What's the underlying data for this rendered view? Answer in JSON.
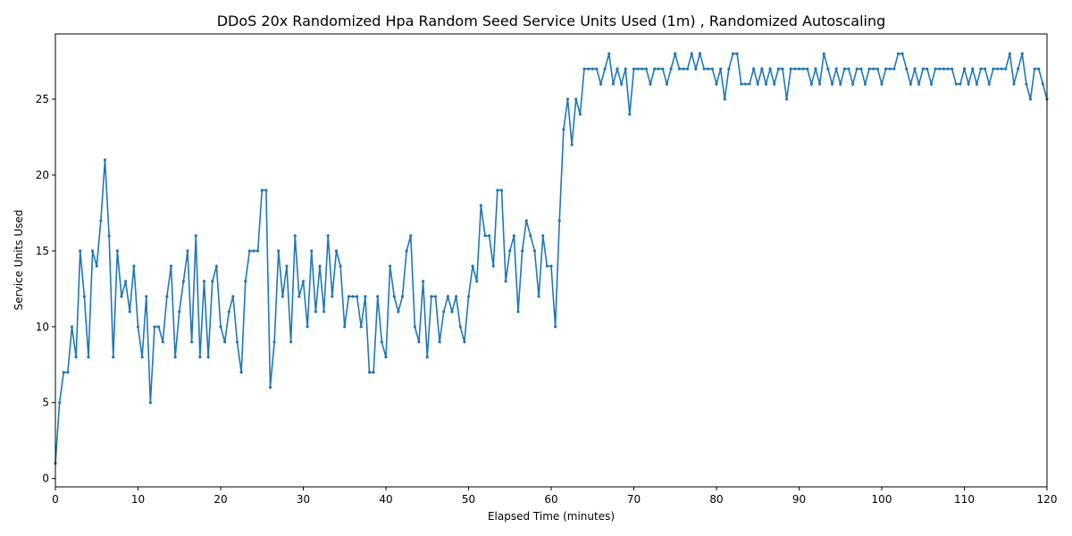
{
  "chart_data": {
    "type": "line",
    "title": "DDoS 20x Randomized Hpa Random Seed Service Units Used (1m) , Randomized Autoscaling",
    "xlabel": "Elapsed Time (minutes)",
    "ylabel": "Service Units Used",
    "xlim": [
      0,
      120
    ],
    "ylim": [
      -0.55,
      29.3
    ],
    "xticks": [
      0,
      10,
      20,
      30,
      40,
      50,
      60,
      70,
      80,
      90,
      100,
      110,
      120
    ],
    "yticks": [
      0,
      5,
      10,
      15,
      20,
      25
    ],
    "x": [
      0,
      0.5,
      1,
      1.5,
      2,
      2.5,
      3,
      3.5,
      4,
      4.5,
      5,
      5.5,
      6,
      6.5,
      7,
      7.5,
      8,
      8.5,
      9,
      9.5,
      10,
      10.5,
      11,
      11.5,
      12,
      12.5,
      13,
      13.5,
      14,
      14.5,
      15,
      15.5,
      16,
      16.5,
      17,
      17.5,
      18,
      18.5,
      19,
      19.5,
      20,
      20.5,
      21,
      21.5,
      22,
      22.5,
      23,
      23.5,
      24,
      24.5,
      25,
      25.5,
      26,
      26.5,
      27,
      27.5,
      28,
      28.5,
      29,
      29.5,
      30,
      30.5,
      31,
      31.5,
      32,
      32.5,
      33,
      33.5,
      34,
      34.5,
      35,
      35.5,
      36,
      36.5,
      37,
      37.5,
      38,
      38.5,
      39,
      39.5,
      40,
      40.5,
      41,
      41.5,
      42,
      42.5,
      43,
      43.5,
      44,
      44.5,
      45,
      45.5,
      46,
      46.5,
      47,
      47.5,
      48,
      48.5,
      49,
      49.5,
      50,
      50.5,
      51,
      51.5,
      52,
      52.5,
      53,
      53.5,
      54,
      54.5,
      55,
      55.5,
      56,
      56.5,
      57,
      57.5,
      58,
      58.5,
      59,
      59.5,
      60,
      60.5,
      61,
      61.5,
      62,
      62.5,
      63,
      63.5,
      64,
      64.5,
      65,
      65.5,
      66,
      66.5,
      67,
      67.5,
      68,
      68.5,
      69,
      69.5,
      70,
      70.5,
      71,
      71.5,
      72,
      72.5,
      73,
      73.5,
      74,
      74.5,
      75,
      75.5,
      76,
      76.5,
      77,
      77.5,
      78,
      78.5,
      79,
      79.5,
      80,
      80.5,
      81,
      81.5,
      82,
      82.5,
      83,
      83.5,
      84,
      84.5,
      85,
      85.5,
      86,
      86.5,
      87,
      87.5,
      88,
      88.5,
      89,
      89.5,
      90,
      90.5,
      91,
      91.5,
      92,
      92.5,
      93,
      93.5,
      94,
      94.5,
      95,
      95.5,
      96,
      96.5,
      97,
      97.5,
      98,
      98.5,
      99,
      99.5,
      100,
      100.5,
      101,
      101.5,
      102,
      102.5,
      103,
      103.5,
      104,
      104.5,
      105,
      105.5,
      106,
      106.5,
      107,
      107.5,
      108,
      108.5,
      109,
      109.5,
      110,
      110.5,
      111,
      111.5,
      112,
      112.5,
      113,
      113.5,
      114,
      114.5,
      115,
      115.5,
      116,
      116.5,
      117,
      117.5,
      118,
      118.5,
      119,
      119.5,
      120
    ],
    "series": [
      {
        "color": "#1f77b4",
        "values": [
          1,
          5,
          7,
          7,
          10,
          8,
          15,
          12,
          8,
          15,
          14,
          17,
          21,
          16,
          8,
          15,
          12,
          13,
          11,
          14,
          10,
          8,
          12,
          5,
          10,
          10,
          9,
          12,
          14,
          8,
          11,
          13,
          15,
          9,
          16,
          8,
          13,
          8,
          13,
          14,
          10,
          9,
          11,
          12,
          9,
          7,
          13,
          15,
          15,
          15,
          19,
          19,
          6,
          9,
          15,
          12,
          14,
          9,
          16,
          12,
          13,
          10,
          15,
          11,
          14,
          11,
          16,
          12,
          15,
          14,
          10,
          12,
          12,
          12,
          10,
          12,
          7,
          7,
          12,
          9,
          8,
          14,
          12,
          11,
          12,
          15,
          16,
          10,
          9,
          13,
          8,
          12,
          12,
          9,
          11,
          12,
          11,
          12,
          10,
          9,
          12,
          14,
          13,
          18,
          16,
          16,
          14,
          19,
          19,
          13,
          15,
          16,
          11,
          15,
          17,
          16,
          15,
          12,
          16,
          14,
          14,
          10,
          17,
          23,
          25,
          22,
          25,
          24,
          27,
          27,
          27,
          27,
          26,
          27,
          28,
          26,
          27,
          26,
          27,
          24,
          27,
          27,
          27,
          27,
          26,
          27,
          27,
          27,
          26,
          27,
          28,
          27,
          27,
          27,
          28,
          27,
          28,
          27,
          27,
          27,
          26,
          27,
          25,
          27,
          28,
          28,
          26,
          26,
          26,
          27,
          26,
          27,
          26,
          27,
          26,
          27,
          27,
          25,
          27,
          27,
          27,
          27,
          27,
          26,
          27,
          26,
          28,
          27,
          26,
          27,
          26,
          27,
          27,
          26,
          27,
          27,
          26,
          27,
          27,
          27,
          26,
          27,
          27,
          27,
          28,
          28,
          27,
          26,
          27,
          26,
          27,
          27,
          26,
          27,
          27,
          27,
          27,
          27,
          26,
          26,
          27,
          26,
          27,
          26,
          27,
          27,
          26,
          27,
          27,
          27,
          27,
          28,
          26,
          27,
          28,
          26,
          25,
          27,
          27,
          26,
          25
        ]
      }
    ]
  }
}
